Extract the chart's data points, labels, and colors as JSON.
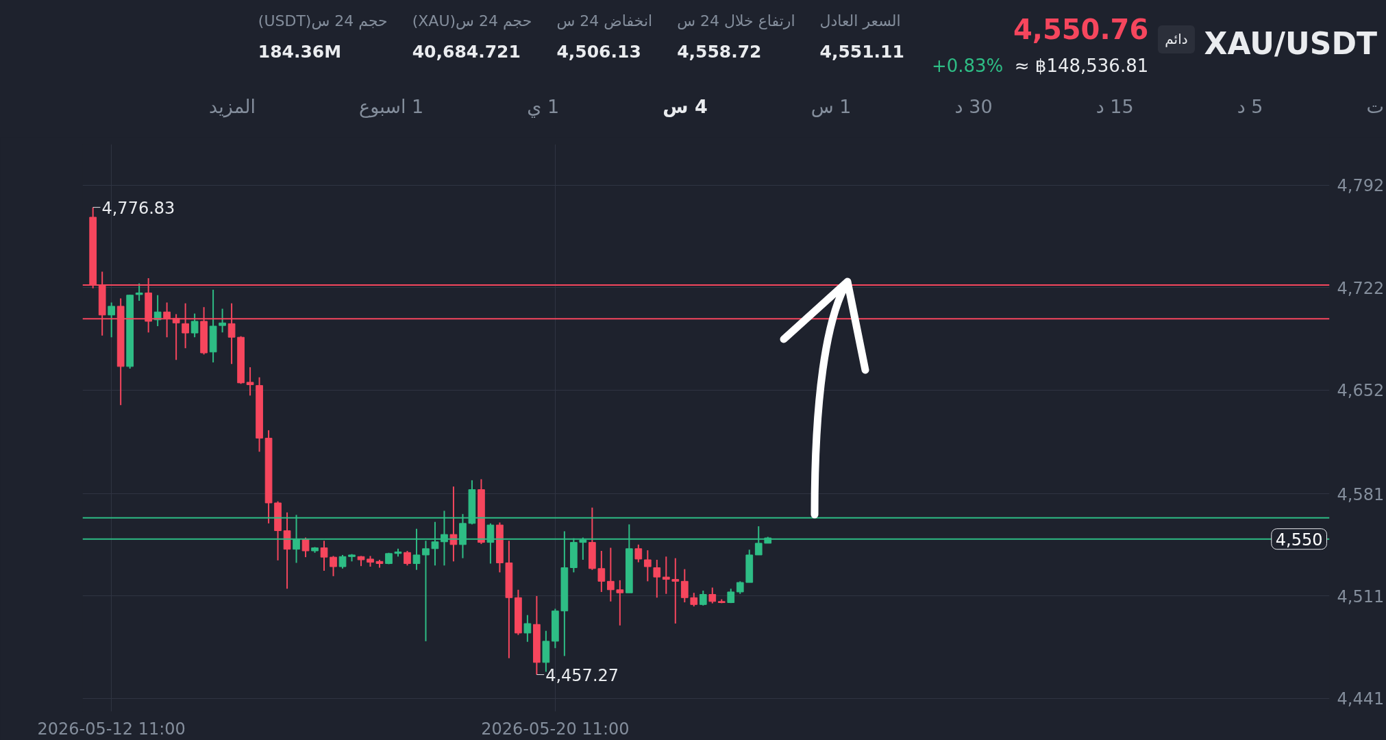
{
  "chart_data": {
    "type": "candlestick",
    "title": "XAU/USDT",
    "x": [
      "2026-05-12T03:00",
      "2026-05-12T07:00",
      "2026-05-12T11:00",
      "2026-05-12T15:00",
      "2026-05-12T19:00",
      "2026-05-12T23:00",
      "2026-05-13T03:00",
      "2026-05-13T07:00",
      "2026-05-13T11:00",
      "2026-05-13T15:00",
      "2026-05-13T19:00",
      "2026-05-13T23:00",
      "2026-05-14T03:00",
      "2026-05-14T07:00",
      "2026-05-14T11:00",
      "2026-05-14T15:00",
      "2026-05-14T19:00",
      "2026-05-14T23:00",
      "2026-05-15T03:00",
      "2026-05-15T07:00",
      "2026-05-15T11:00",
      "2026-05-15T15:00",
      "2026-05-15T19:00",
      "2026-05-15T23:00",
      "2026-05-16T03:00",
      "2026-05-16T07:00",
      "2026-05-16T11:00",
      "2026-05-16T15:00",
      "2026-05-16T19:00",
      "2026-05-16T23:00",
      "2026-05-17T03:00",
      "2026-05-17T07:00",
      "2026-05-17T11:00",
      "2026-05-17T15:00",
      "2026-05-17T19:00",
      "2026-05-17T23:00",
      "2026-05-18T03:00",
      "2026-05-18T07:00",
      "2026-05-18T11:00",
      "2026-05-18T15:00",
      "2026-05-18T19:00",
      "2026-05-18T23:00",
      "2026-05-19T03:00",
      "2026-05-19T07:00",
      "2026-05-19T11:00",
      "2026-05-19T15:00",
      "2026-05-19T19:00",
      "2026-05-19T23:00",
      "2026-05-20T03:00",
      "2026-05-20T07:00",
      "2026-05-20T11:00",
      "2026-05-20T15:00",
      "2026-05-20T19:00",
      "2026-05-20T23:00",
      "2026-05-21T03:00",
      "2026-05-21T07:00",
      "2026-05-21T11:00",
      "2026-05-21T15:00",
      "2026-05-21T19:00",
      "2026-05-21T23:00",
      "2026-05-22T03:00",
      "2026-05-22T07:00",
      "2026-05-22T11:00",
      "2026-05-22T15:00",
      "2026-05-22T19:00",
      "2026-05-22T23:00",
      "2026-05-23T03:00",
      "2026-05-23T07:00",
      "2026-05-23T11:00",
      "2026-05-23T15:00",
      "2026-05-23T19:00",
      "2026-05-23T23:00",
      "2026-05-24T03:00",
      "2026-05-24T07:00"
    ],
    "ohlc": [
      [
        4770.1,
        4776.83,
        4721.5,
        4723.7
      ],
      [
        4723.7,
        4732.8,
        4689.1,
        4703.2
      ],
      [
        4703.2,
        4711.8,
        4688.0,
        4709.2
      ],
      [
        4709.2,
        4714.6,
        4641.6,
        4668.0
      ],
      [
        4668.0,
        4717.0,
        4666.5,
        4716.8
      ],
      [
        4717.2,
        4724.8,
        4712.9,
        4718.3
      ],
      [
        4718.3,
        4728.4,
        4691.3,
        4698.9
      ],
      [
        4699.9,
        4716.8,
        4695.6,
        4705.3
      ],
      [
        4705.3,
        4711.8,
        4688.0,
        4701.0
      ],
      [
        4701.0,
        4703.8,
        4672.5,
        4697.8
      ],
      [
        4697.3,
        4711.2,
        4680.5,
        4690.9
      ],
      [
        4690.9,
        4704.2,
        4688.0,
        4698.9
      ],
      [
        4698.9,
        4708.6,
        4676.2,
        4677.3
      ],
      [
        4677.9,
        4720.5,
        4670.8,
        4695.6
      ],
      [
        4696.0,
        4707.5,
        4691.3,
        4697.8
      ],
      [
        4697.3,
        4711.2,
        4669.7,
        4688.0
      ],
      [
        4688.0,
        4688.7,
        4656.1,
        4656.8
      ],
      [
        4657.2,
        4667.5,
        4648.1,
        4655.5
      ],
      [
        4655.0,
        4660.6,
        4609.7,
        4619.0
      ],
      [
        4619.0,
        4624.4,
        4560.7,
        4574.7
      ],
      [
        4574.7,
        4575.8,
        4535.4,
        4555.7
      ],
      [
        4555.7,
        4568.2,
        4516.0,
        4543.0
      ],
      [
        4543.0,
        4566.5,
        4533.7,
        4549.9
      ],
      [
        4549.9,
        4551.0,
        4537.6,
        4541.9
      ],
      [
        4541.9,
        4544.5,
        4540.6,
        4544.0
      ],
      [
        4544.0,
        4548.8,
        4528.3,
        4537.6
      ],
      [
        4537.6,
        4538.4,
        4524.6,
        4531.1
      ],
      [
        4531.1,
        4539.1,
        4529.8,
        4538.0
      ],
      [
        4538.0,
        4539.7,
        4534.7,
        4539.1
      ],
      [
        4538.0,
        4538.4,
        4531.5,
        4535.8
      ],
      [
        4536.3,
        4538.4,
        4531.1,
        4534.1
      ],
      [
        4534.7,
        4535.8,
        4530.4,
        4533.2
      ],
      [
        4533.2,
        4540.6,
        4532.8,
        4540.1
      ],
      [
        4540.1,
        4543.4,
        4538.0,
        4541.2
      ],
      [
        4540.8,
        4541.9,
        4531.9,
        4533.2
      ],
      [
        4533.2,
        4557.0,
        4528.9,
        4539.1
      ],
      [
        4539.1,
        4548.8,
        4480.1,
        4543.4
      ],
      [
        4543.4,
        4561.7,
        4531.9,
        4548.1
      ],
      [
        4548.1,
        4569.3,
        4531.9,
        4553.1
      ],
      [
        4553.1,
        4585.9,
        4534.7,
        4546.2
      ],
      [
        4546.2,
        4567.1,
        4536.9,
        4560.7
      ],
      [
        4560.7,
        4590.2,
        4560.0,
        4583.8
      ],
      [
        4583.8,
        4590.9,
        4546.6,
        4547.7
      ],
      [
        4547.7,
        4560.7,
        4533.2,
        4559.6
      ],
      [
        4559.6,
        4561.3,
        4527.2,
        4533.7
      ],
      [
        4533.7,
        4548.8,
        4468.5,
        4509.9
      ],
      [
        4509.9,
        4515.3,
        4484.4,
        4485.7
      ],
      [
        4485.7,
        4498.0,
        4479.7,
        4492.2
      ],
      [
        4491.6,
        4511.0,
        4457.27,
        4465.6
      ],
      [
        4465.6,
        4487.2,
        4459.2,
        4480.1
      ],
      [
        4480.1,
        4502.3,
        4475.4,
        4500.8
      ],
      [
        4500.8,
        4555.3,
        4470.0,
        4530.4
      ],
      [
        4530.4,
        4550.5,
        4527.2,
        4547.7
      ],
      [
        4547.7,
        4551.0,
        4535.8,
        4549.4
      ],
      [
        4547.7,
        4571.5,
        4528.9,
        4529.8
      ],
      [
        4529.8,
        4541.9,
        4513.8,
        4521.1
      ],
      [
        4521.1,
        4544.0,
        4507.3,
        4515.3
      ],
      [
        4515.3,
        4521.8,
        4490.9,
        4513.2
      ],
      [
        4513.2,
        4560.0,
        4513.2,
        4543.4
      ],
      [
        4543.4,
        4546.2,
        4534.1,
        4536.3
      ],
      [
        4535.8,
        4542.3,
        4521.1,
        4531.1
      ],
      [
        4530.4,
        4535.8,
        4509.9,
        4524.0
      ],
      [
        4524.0,
        4538.0,
        4512.5,
        4522.4
      ],
      [
        4522.4,
        4536.9,
        4492.2,
        4521.1
      ],
      [
        4521.1,
        4529.4,
        4506.7,
        4509.9
      ],
      [
        4509.9,
        4513.2,
        4503.9,
        4505.2
      ],
      [
        4505.2,
        4514.7,
        4504.5,
        4512.1
      ],
      [
        4512.1,
        4516.8,
        4506.0,
        4507.3
      ],
      [
        4507.3,
        4508.8,
        4506.13,
        4506.5
      ],
      [
        4506.5,
        4516.0,
        4506.2,
        4513.8
      ],
      [
        4513.8,
        4521.1,
        4512.5,
        4520.3
      ],
      [
        4520.3,
        4542.7,
        4520.3,
        4539.1
      ],
      [
        4539.1,
        4558.72,
        4539.1,
        4547.1
      ],
      [
        4547.1,
        4551.5,
        4547.1,
        4550.76
      ]
    ],
    "colors": [
      "#f6465d",
      "#f6465d",
      "#2ebd85",
      "#f6465d",
      "#2ebd85",
      "#2ebd85",
      "#f6465d",
      "#2ebd85",
      "#f6465d",
      "#f6465d",
      "#f6465d",
      "#2ebd85",
      "#f6465d",
      "#2ebd85",
      "#2ebd85",
      "#f6465d",
      "#f6465d",
      "#f6465d",
      "#f6465d",
      "#f6465d",
      "#f6465d",
      "#f6465d",
      "#2ebd85",
      "#f6465d",
      "#2ebd85",
      "#f6465d",
      "#f6465d",
      "#2ebd85",
      "#2ebd85",
      "#f6465d",
      "#f6465d",
      "#f6465d",
      "#2ebd85",
      "#2ebd85",
      "#f6465d",
      "#2ebd85",
      "#2ebd85",
      "#2ebd85",
      "#2ebd85",
      "#f6465d",
      "#2ebd85",
      "#2ebd85",
      "#f6465d",
      "#2ebd85",
      "#f6465d",
      "#f6465d",
      "#f6465d",
      "#2ebd85",
      "#f6465d",
      "#2ebd85",
      "#2ebd85",
      "#2ebd85",
      "#2ebd85",
      "#2ebd85",
      "#f6465d",
      "#f6465d",
      "#f6465d",
      "#f6465d",
      "#2ebd85",
      "#f6465d",
      "#f6465d",
      "#f6465d",
      "#f6465d",
      "#f6465d",
      "#f6465d",
      "#f6465d",
      "#2ebd85",
      "#f6465d",
      "#f6465d",
      "#2ebd85",
      "#2ebd85",
      "#2ebd85",
      "#2ebd85",
      "#2ebd85"
    ],
    "xlim": [
      "2026-05-11T22:30",
      "2026-06-03T10:00"
    ],
    "xticks": [
      {
        "value": "2026-05-12T11:00",
        "label": "2026-05-12 11:00"
      },
      {
        "value": "2026-05-20T11:00",
        "label": "2026-05-20 11:00"
      }
    ],
    "ylim": [
      4432,
      4820
    ],
    "yticks": [
      {
        "value": 4441,
        "label": "4,441"
      },
      {
        "value": 4511,
        "label": "4,511"
      },
      {
        "value": 4581,
        "label": "4,581"
      },
      {
        "value": 4652,
        "label": "4,652"
      },
      {
        "value": 4722,
        "label": "4,722"
      },
      {
        "value": 4792,
        "label": "4,792"
      }
    ],
    "grid": true,
    "ref_lines": [
      {
        "axis": "y",
        "value": 4723.7,
        "color": "#f6465d"
      },
      {
        "axis": "y",
        "value": 4700.6,
        "color": "#f6465d"
      },
      {
        "axis": "y",
        "value": 4564.5,
        "color": "#2ebd85"
      },
      {
        "axis": "y",
        "value": 4550,
        "color": "#2ebd85",
        "label": "4,550"
      }
    ],
    "annotations": [
      "دائم",
      "4,550.76",
      "≈ ฿148,536.81",
      "+0.83%",
      "السعر العادل",
      "4,551.11",
      "ارتفاع خلال 24 س",
      "4,558.72",
      "انخفاض 24 س",
      "4,506.13",
      "حجم 24 س(XAU)",
      "40,684.721",
      "حجم 24 س(USDT)",
      "184.36M",
      "ت",
      "5 د",
      "15 د",
      "30 د",
      "1 س",
      "4 س",
      "1 ي",
      "1 اسبوع",
      "المزيد",
      {
        "text": "4,776.83",
        "x": "2026-05-12T03:00",
        "y": 4776.83
      },
      {
        "text": "4,457.27",
        "x": "2026-05-20T03:00",
        "y": 4457.27
      }
    ]
  }
}
